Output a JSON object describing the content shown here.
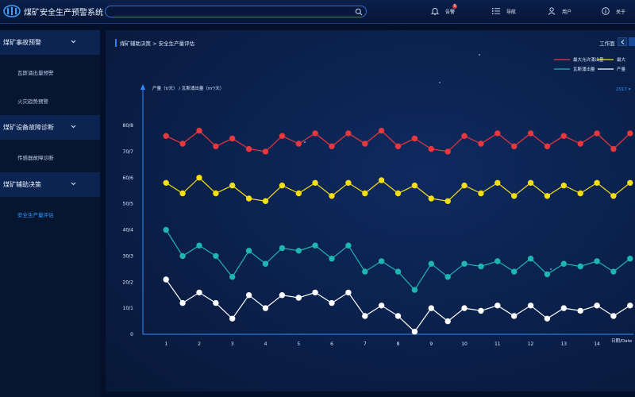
{
  "header": {
    "app_title": "煤矿安全生产预警系统",
    "search_placeholder": "",
    "alarm_label": "告警",
    "alarm_count": "5",
    "nav_label": "导航",
    "user_label": "用户",
    "about_label": "关于"
  },
  "sidebar": {
    "groups": [
      {
        "label": "煤矿事故预警",
        "items": [
          "瓦斯涌出量预警",
          "火灾趋势预警"
        ]
      },
      {
        "label": "煤矿设备故障诊断",
        "items": [
          "传感器故障诊断"
        ]
      },
      {
        "label": "煤矿辅助决策",
        "items": [
          "安全生产量评估"
        ]
      }
    ],
    "active_item": "安全生产量评估"
  },
  "main": {
    "breadcrumb": "煤矿辅助决策 > 安全生产量评估",
    "toolbar_label": "工作面",
    "year_label": "2017 ▾"
  },
  "colors": {
    "red": "#e8383d",
    "yellow": "#f3de17",
    "teal": "#1fb6b1",
    "white": "#ffffff",
    "accent": "#2e7bff"
  },
  "chart_data": {
    "type": "line",
    "y_axis_label": "产量（t/天） / 瓦斯涌出量（m³/天）",
    "x_axis_label": "日期/Date",
    "y_ticks": [
      "0",
      "10/1",
      "20/2",
      "30/3",
      "40/4",
      "50/5",
      "60/6",
      "70/7",
      "80/8"
    ],
    "ylim": [
      0,
      80
    ],
    "x": [
      1,
      1.5,
      2,
      2.5,
      3,
      3.5,
      4,
      4.5,
      5,
      5.5,
      6,
      6.5,
      7,
      7.5,
      8,
      8.5,
      9,
      9.5,
      10,
      10.5,
      11,
      11.5,
      12,
      12.5,
      13,
      13.5,
      14,
      14.5,
      15
    ],
    "x_tick_labels": [
      "1",
      "2",
      "3",
      "4",
      "5",
      "6",
      "7",
      "8",
      "9",
      "10",
      "11",
      "12",
      "13",
      "14"
    ],
    "xlim": [
      0.3,
      15.1
    ],
    "legend": [
      "最大允许涌出量",
      "最大",
      "瓦斯涌出量",
      "产量"
    ],
    "series": [
      {
        "name": "最大允许涌出量",
        "color": "red",
        "values": [
          76,
          73,
          78,
          72,
          75,
          71,
          70,
          76,
          73,
          77,
          72,
          77,
          73,
          78,
          72,
          75,
          71,
          70,
          76,
          73,
          77,
          72,
          77,
          72,
          76,
          73,
          77,
          71,
          77
        ]
      },
      {
        "name": "最大",
        "color": "yellow",
        "values": [
          58,
          54,
          60,
          54,
          57,
          52,
          51,
          57,
          54,
          58,
          53,
          58,
          54,
          59,
          54,
          57,
          52,
          51,
          57,
          54,
          58,
          53,
          58,
          53,
          57,
          54,
          58,
          53,
          58
        ]
      },
      {
        "name": "瓦斯涌出量",
        "color": "teal",
        "values": [
          40,
          30,
          34,
          30,
          22,
          32,
          27,
          33,
          32,
          34,
          29,
          34,
          24,
          28,
          24,
          17,
          27,
          22,
          27,
          26,
          28,
          24,
          29,
          23,
          27,
          26,
          28,
          24,
          29
        ]
      },
      {
        "name": "产量",
        "color": "white",
        "values": [
          21,
          12,
          16,
          12,
          6,
          15,
          10,
          15,
          14,
          16,
          12,
          16,
          7,
          11,
          7,
          1,
          10,
          5,
          10,
          9,
          11,
          7,
          11,
          6,
          10,
          9,
          11,
          7,
          11
        ]
      }
    ]
  }
}
